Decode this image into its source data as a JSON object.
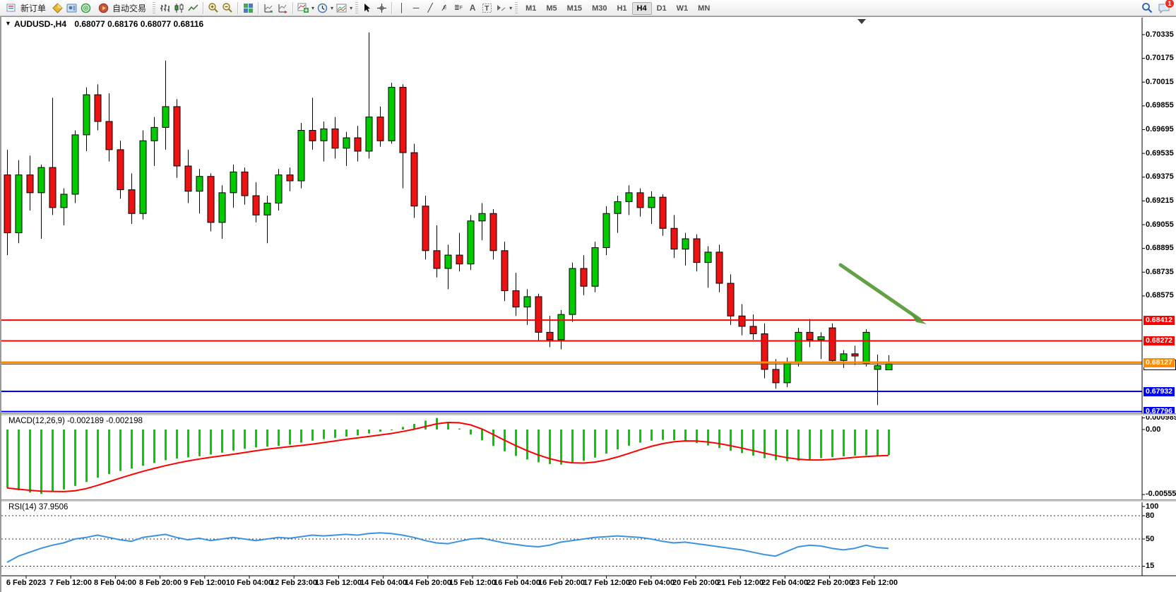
{
  "toolbar": {
    "new_order": "新订单",
    "autotrade": "自动交易",
    "timeframes": [
      "M1",
      "M5",
      "M15",
      "M30",
      "H1",
      "H4",
      "D1",
      "W1",
      "MN"
    ],
    "active_timeframe": "H4",
    "notification_count": "1",
    "icon_names": [
      "new-order-icon",
      "gold-package-icon",
      "navigator-icon",
      "radar-icon",
      "autotrade-icon",
      "bar-chart-icon",
      "candlestick-chart-icon",
      "line-chart-icon",
      "zoom-in-icon",
      "zoom-out-icon",
      "tile-windows-icon",
      "auto-scroll-icon",
      "chart-shift-icon",
      "indicators-icon",
      "periods-icon",
      "templates-icon",
      "cursor-arrow-icon",
      "crosshair-icon",
      "vertical-line-icon",
      "horizontal-line-icon",
      "trendline-icon",
      "equidistant-channel-icon",
      "fibonacci-icon",
      "text-icon",
      "label-icon",
      "shapes-icon",
      "search-icon",
      "chat-icon"
    ]
  },
  "chart": {
    "expander": "▼",
    "symbol_title": "AUDUSD-,H4",
    "ohlc": "0.68077 0.68176 0.68077 0.68116",
    "bid_label": "0.68116"
  },
  "price_axis": {
    "ticks": [
      "0.70335",
      "0.70175",
      "0.70015",
      "0.69855",
      "0.69695",
      "0.69535",
      "0.69375",
      "0.69215",
      "0.69055",
      "0.68895",
      "0.68735",
      "0.68575"
    ]
  },
  "hlines": [
    {
      "price": 0.68412,
      "label": "0.68412",
      "color": "#fe0000",
      "width": 2
    },
    {
      "price": 0.68272,
      "label": "0.68272",
      "color": "#fe0000",
      "width": 2
    },
    {
      "price": 0.68127,
      "label": "0.68127",
      "color": "#ff8c00",
      "width": 3
    },
    {
      "price": 0.67932,
      "label": "0.67932",
      "color": "#0000fe",
      "width": 2
    },
    {
      "price": 0.67796,
      "label": "0.67796",
      "color": "#0000fe",
      "width": 2
    }
  ],
  "time_axis": {
    "labels": [
      "6 Feb 2023",
      "7 Feb 12:00",
      "8 Feb 04:00",
      "8 Feb 20:00",
      "9 Feb 12:00",
      "10 Feb 04:00",
      "12 Feb 23:00",
      "13 Feb 12:00",
      "14 Feb 04:00",
      "14 Feb 20:00",
      "15 Feb 12:00",
      "16 Feb 04:00",
      "16 Feb 20:00",
      "17 Feb 12:00",
      "20 Feb 04:00",
      "20 Feb 20:00",
      "21 Feb 12:00",
      "22 Feb 04:00",
      "22 Feb 20:00",
      "23 Feb 12:00"
    ]
  },
  "macd": {
    "label": "MACD(12,26,9) -0.002189 -0.002198",
    "axis_max": "0.000989",
    "axis_zero": "0.00",
    "axis_min": "-0.005554"
  },
  "rsi": {
    "label": "RSI(14) 37.9506",
    "levels": [
      "100",
      "80",
      "50",
      "15"
    ]
  },
  "chart_data": {
    "type": "candlestick",
    "symbol": "AUDUSD-",
    "timeframe": "H4",
    "title": "AUDUSD-,H4",
    "last_ohlc": [
      0.68077,
      0.68176,
      0.68077,
      0.68116
    ],
    "price_range": [
      0.6779,
      0.7045
    ],
    "up_color": "#00cc00",
    "down_color": "#ee1111",
    "wick_color": "#000000",
    "candles": [
      [
        0.6939,
        0.6956,
        0.6885,
        0.69
      ],
      [
        0.69,
        0.6949,
        0.6893,
        0.6939
      ],
      [
        0.6939,
        0.6952,
        0.6915,
        0.6927
      ],
      [
        0.6927,
        0.6946,
        0.6896,
        0.6944
      ],
      [
        0.6944,
        0.6991,
        0.6912,
        0.6917
      ],
      [
        0.6917,
        0.693,
        0.6905,
        0.6926
      ],
      [
        0.6926,
        0.6969,
        0.692,
        0.6966
      ],
      [
        0.6966,
        0.6998,
        0.6955,
        0.6993
      ],
      [
        0.6993,
        0.7,
        0.6969,
        0.6975
      ],
      [
        0.6975,
        0.6994,
        0.6948,
        0.6956
      ],
      [
        0.6956,
        0.6962,
        0.6923,
        0.6929
      ],
      [
        0.6929,
        0.694,
        0.6906,
        0.6913
      ],
      [
        0.6913,
        0.6969,
        0.6909,
        0.6962
      ],
      [
        0.6962,
        0.6978,
        0.6945,
        0.6971
      ],
      [
        0.6971,
        0.7016,
        0.6956,
        0.6985
      ],
      [
        0.6985,
        0.699,
        0.6937,
        0.6945
      ],
      [
        0.6945,
        0.6956,
        0.692,
        0.6928
      ],
      [
        0.6928,
        0.6943,
        0.6913,
        0.6938
      ],
      [
        0.6938,
        0.694,
        0.6901,
        0.6907
      ],
      [
        0.6907,
        0.6932,
        0.6896,
        0.6927
      ],
      [
        0.6927,
        0.6946,
        0.6917,
        0.6941
      ],
      [
        0.6941,
        0.6944,
        0.6919,
        0.6925
      ],
      [
        0.6925,
        0.6934,
        0.6907,
        0.6912
      ],
      [
        0.6912,
        0.6925,
        0.6893,
        0.692
      ],
      [
        0.692,
        0.6943,
        0.6915,
        0.6939
      ],
      [
        0.6939,
        0.6944,
        0.6928,
        0.6935
      ],
      [
        0.6935,
        0.6974,
        0.693,
        0.6969
      ],
      [
        0.6969,
        0.6991,
        0.6956,
        0.6962
      ],
      [
        0.6962,
        0.6975,
        0.6948,
        0.697
      ],
      [
        0.697,
        0.6978,
        0.695,
        0.6957
      ],
      [
        0.6957,
        0.6968,
        0.6945,
        0.6964
      ],
      [
        0.6964,
        0.6972,
        0.6948,
        0.6955
      ],
      [
        0.6955,
        0.7035,
        0.695,
        0.6978
      ],
      [
        0.6978,
        0.6985,
        0.6958,
        0.6962
      ],
      [
        0.6962,
        0.7001,
        0.696,
        0.6998
      ],
      [
        0.6998,
        0.7,
        0.693,
        0.6954
      ],
      [
        0.6954,
        0.696,
        0.691,
        0.6918
      ],
      [
        0.6918,
        0.6925,
        0.6882,
        0.6888
      ],
      [
        0.6888,
        0.6905,
        0.687,
        0.6876
      ],
      [
        0.6876,
        0.6892,
        0.6862,
        0.6885
      ],
      [
        0.6885,
        0.69,
        0.6874,
        0.6879
      ],
      [
        0.6879,
        0.6912,
        0.6875,
        0.6908
      ],
      [
        0.6908,
        0.692,
        0.6895,
        0.6913
      ],
      [
        0.6913,
        0.6916,
        0.6882,
        0.6888
      ],
      [
        0.6888,
        0.6894,
        0.6854,
        0.6861
      ],
      [
        0.6861,
        0.6873,
        0.6844,
        0.685
      ],
      [
        0.685,
        0.6862,
        0.6838,
        0.6857
      ],
      [
        0.6857,
        0.6859,
        0.6827,
        0.6833
      ],
      [
        0.6833,
        0.6844,
        0.6823,
        0.6828
      ],
      [
        0.6828,
        0.6848,
        0.68215,
        0.6845
      ],
      [
        0.6845,
        0.688,
        0.684,
        0.6876
      ],
      [
        0.6876,
        0.6885,
        0.6858,
        0.6864
      ],
      [
        0.6864,
        0.6894,
        0.686,
        0.689
      ],
      [
        0.689,
        0.6918,
        0.6885,
        0.6913
      ],
      [
        0.6913,
        0.6925,
        0.69,
        0.6921
      ],
      [
        0.6921,
        0.6932,
        0.6912,
        0.6927
      ],
      [
        0.6927,
        0.693,
        0.6911,
        0.6917
      ],
      [
        0.6917,
        0.6928,
        0.6906,
        0.6924
      ],
      [
        0.6924,
        0.6926,
        0.6898,
        0.6903
      ],
      [
        0.6903,
        0.6912,
        0.6883,
        0.6889
      ],
      [
        0.6889,
        0.69,
        0.6878,
        0.6896
      ],
      [
        0.6896,
        0.6899,
        0.6874,
        0.688
      ],
      [
        0.688,
        0.6891,
        0.6863,
        0.6887
      ],
      [
        0.6887,
        0.6892,
        0.686,
        0.6866
      ],
      [
        0.6866,
        0.6872,
        0.6838,
        0.6844
      ],
      [
        0.6844,
        0.6852,
        0.6831,
        0.6837
      ],
      [
        0.6837,
        0.6845,
        0.6828,
        0.6832
      ],
      [
        0.6832,
        0.6839,
        0.6802,
        0.6808
      ],
      [
        0.6808,
        0.6815,
        0.6795,
        0.6799
      ],
      [
        0.6799,
        0.6816,
        0.6796,
        0.6813
      ],
      [
        0.6813,
        0.6836,
        0.681,
        0.6833
      ],
      [
        0.6833,
        0.6842,
        0.6823,
        0.6828
      ],
      [
        0.6828,
        0.6833,
        0.6815,
        0.683
      ],
      [
        0.6836,
        0.6839,
        0.6812,
        0.6814
      ],
      [
        0.6814,
        0.6821,
        0.6809,
        0.68185
      ],
      [
        0.68185,
        0.6824,
        0.6811,
        0.6817
      ],
      [
        0.6812,
        0.6835,
        0.681,
        0.6833
      ],
      [
        0.6808,
        0.6818,
        0.6784,
        0.68105
      ],
      [
        0.68077,
        0.68176,
        0.68077,
        0.68116
      ]
    ],
    "indicators": {
      "macd": {
        "params": [
          12,
          26,
          9
        ],
        "current_macd": -0.002189,
        "current_signal": -0.002198,
        "range": [
          -0.005554,
          0.000989
        ],
        "histogram": [
          -0.005,
          -0.0052,
          -0.00538,
          -0.0055,
          -0.00535,
          -0.00512,
          -0.00482,
          -0.00448,
          -0.00412,
          -0.0038,
          -0.00354,
          -0.00334,
          -0.0031,
          -0.00286,
          -0.00262,
          -0.00248,
          -0.00238,
          -0.00228,
          -0.00214,
          -0.00198,
          -0.0018,
          -0.00165,
          -0.00153,
          -0.00147,
          -0.0014,
          -0.0013,
          -0.00112,
          -0.00095,
          -0.00082,
          -0.00071,
          -0.00061,
          -0.00051,
          -0.00034,
          -0.00019,
          -4e-05,
          0.00022,
          0.00048,
          0.00076,
          0.00099,
          0.00058,
          8e-05,
          -0.00042,
          -0.00092,
          -0.0014,
          -0.00186,
          -0.00226,
          -0.00256,
          -0.0028,
          -0.00295,
          -0.003,
          -0.0029,
          -0.00268,
          -0.0024,
          -0.00206,
          -0.0017,
          -0.00138,
          -0.00112,
          -0.00095,
          -0.00088,
          -0.00091,
          -0.00101,
          -0.00116,
          -0.00136,
          -0.00158,
          -0.00181,
          -0.00201,
          -0.00223,
          -0.00245,
          -0.00262,
          -0.0027,
          -0.00267,
          -0.00257,
          -0.00245,
          -0.00236,
          -0.00229,
          -0.00223,
          -0.0022,
          -0.00221,
          -0.00219
        ]
      },
      "rsi": {
        "period": 14,
        "current": 37.9506,
        "levels": [
          80,
          50,
          15
        ],
        "values": [
          20,
          28,
          33,
          38,
          42,
          45,
          50,
          52,
          55,
          52,
          49,
          47,
          52,
          54,
          56,
          52,
          49,
          51,
          48,
          50,
          52,
          50,
          48,
          50,
          52,
          51,
          53,
          55,
          54,
          55,
          56,
          55,
          57,
          58,
          57,
          55,
          52,
          48,
          45,
          44,
          47,
          50,
          51,
          48,
          45,
          43,
          41,
          40,
          42,
          46,
          48,
          50,
          52,
          53,
          54,
          53,
          52,
          50,
          47,
          45,
          46,
          44,
          42,
          40,
          38,
          36,
          33,
          30,
          28,
          34,
          40,
          42,
          41,
          38,
          36,
          38,
          42,
          39,
          37.95
        ]
      }
    },
    "annotations": [
      {
        "type": "arrow",
        "color": "#569a38",
        "from_xy": [
          1190,
          375
        ],
        "to_xy": [
          1302,
          452
        ],
        "meaning": "bearish-expectation-arrow"
      }
    ]
  }
}
